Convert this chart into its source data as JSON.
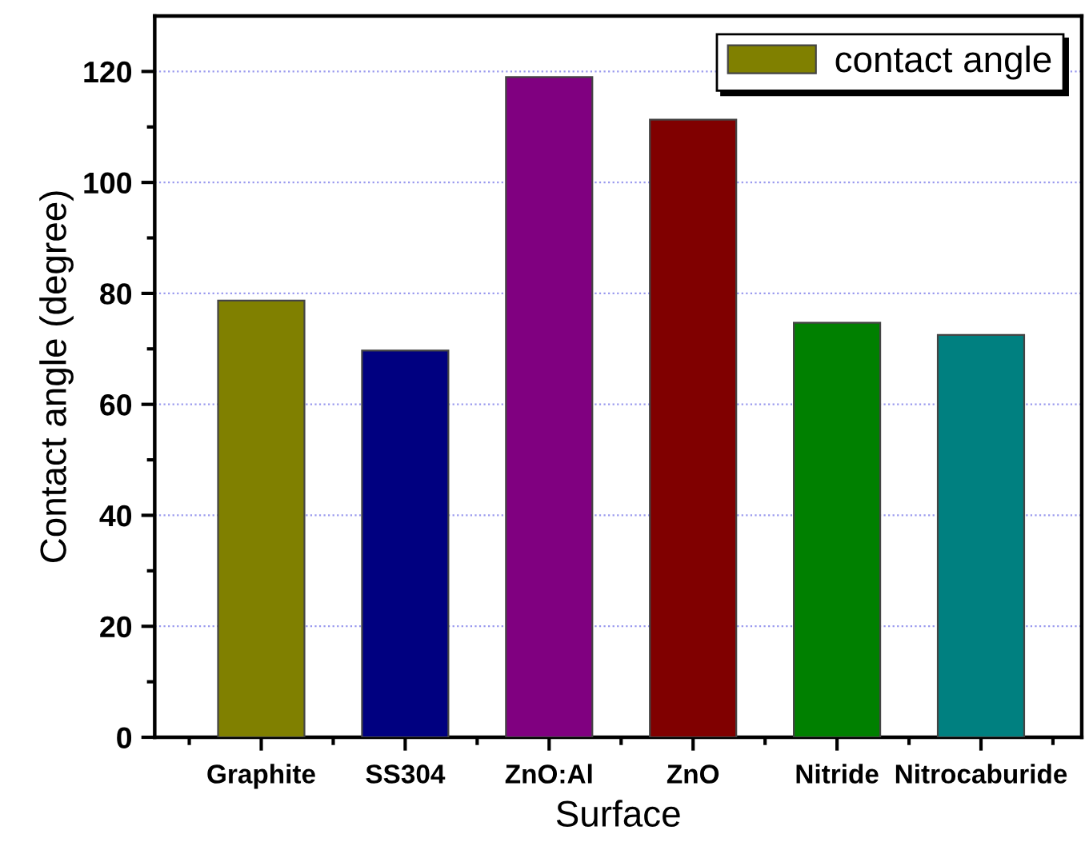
{
  "chart_data": {
    "type": "bar",
    "categories": [
      "Graphite",
      "SS304",
      "ZnO:Al",
      "ZnO",
      "Nitride",
      "Nitrocaburide"
    ],
    "series": [
      {
        "name": "contact angle",
        "color": "#808000",
        "colors": [
          "#808000",
          "#000080",
          "#800080",
          "#800000",
          "#008000",
          "#008080"
        ],
        "values": [
          78.7,
          69.7,
          119,
          111.3,
          74.7,
          72.5
        ]
      }
    ],
    "xlabel": "Surface",
    "ylabel": "Contact angle (degree)",
    "ylim": [
      0,
      130
    ],
    "yticks": [
      0,
      {
        "value": 10,
        "label": null
      },
      20,
      {
        "value": 30,
        "label": null
      },
      40,
      {
        "value": 50,
        "label": null
      },
      60,
      {
        "value": 70,
        "label": null
      },
      80,
      {
        "value": 90,
        "label": null
      },
      100,
      {
        "value": 110,
        "label": null
      },
      120
    ],
    "grid": "y",
    "legend": "top right"
  }
}
